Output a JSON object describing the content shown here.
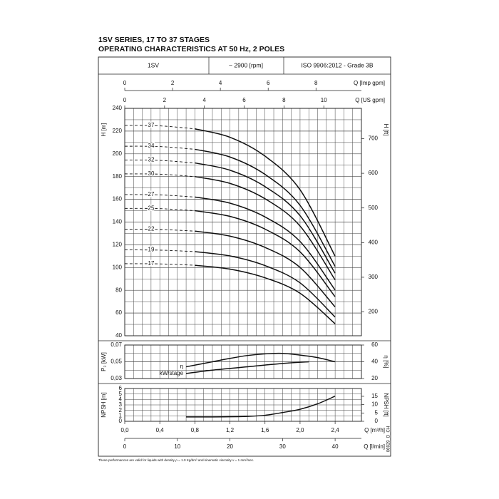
{
  "header": {
    "title": "1SV SERIES, 17 TO 37 STAGES",
    "subtitle": "OPERATING CHARACTERISTICS AT 50 Hz, 2 POLES"
  },
  "info": {
    "model": "1SV",
    "speed": "~ 2900 [rpm]",
    "standard": "ISO 9906:2012 - Grade 3B"
  },
  "chart_data": [
    {
      "type": "line",
      "y_label": "H [m]",
      "y2_label": "H [ft]",
      "color": "#111111",
      "xlim": [
        0,
        2.7
      ],
      "xgrid_step": 0.1,
      "ylim": [
        40,
        240
      ],
      "yticks": [
        40,
        60,
        80,
        100,
        120,
        140,
        160,
        180,
        200,
        220,
        240
      ],
      "yminor_step": 10,
      "y2lim": [
        131.2,
        787.4
      ],
      "y2ticks": [
        200,
        300,
        400,
        500,
        600,
        700
      ],
      "top_axes": [
        {
          "label": "Q [Imp gpm]",
          "lim": [
            0,
            9.9
          ],
          "ticks": [
            0,
            2,
            4,
            6,
            8
          ]
        },
        {
          "label": "Q [US gpm]",
          "lim": [
            0,
            11.89
          ],
          "ticks": [
            0,
            2,
            4,
            6,
            8,
            10
          ]
        }
      ],
      "dashed_until": 0.8,
      "x": [
        0,
        0.4,
        0.8,
        1.2,
        1.6,
        2.0,
        2.4
      ],
      "series": [
        {
          "name": "37",
          "values": [
            225.0,
            224.6,
            222.0,
            214.6,
            198.0,
            168.4,
            109.9
          ]
        },
        {
          "name": "34",
          "values": [
            206.7,
            206.4,
            204.0,
            197.2,
            181.9,
            154.7,
            101.0
          ]
        },
        {
          "name": "32",
          "values": [
            194.6,
            194.2,
            192.0,
            185.6,
            171.2,
            145.6,
            95.0
          ]
        },
        {
          "name": "30",
          "values": [
            182.4,
            182.1,
            180.0,
            174.0,
            160.5,
            136.5,
            89.1
          ]
        },
        {
          "name": "27",
          "values": [
            164.2,
            163.9,
            162.0,
            156.6,
            144.5,
            122.9,
            80.2
          ]
        },
        {
          "name": "25",
          "values": [
            152.0,
            151.8,
            150.0,
            145.0,
            133.8,
            113.8,
            74.3
          ]
        },
        {
          "name": "22",
          "values": [
            133.8,
            133.5,
            132.0,
            127.6,
            117.7,
            100.1,
            65.3
          ]
        },
        {
          "name": "19",
          "values": [
            115.5,
            115.3,
            114.0,
            110.2,
            101.7,
            86.5,
            56.4
          ]
        },
        {
          "name": "17",
          "values": [
            103.4,
            103.2,
            102.0,
            98.6,
            91.0,
            77.4,
            50.5
          ]
        }
      ]
    },
    {
      "type": "line",
      "y_label": "P₂ [kW]",
      "y2_label": "η [%]",
      "color": "#111111",
      "xlim": [
        0,
        2.7
      ],
      "xgrid_step": 0.1,
      "ylim": [
        0.03,
        0.07
      ],
      "yticks": [
        {
          "value": 0.03,
          "label": "0,03"
        },
        {
          "value": 0.05,
          "label": "0,05"
        },
        {
          "value": 0.07,
          "label": "0,07"
        }
      ],
      "yminor_step": 0.01,
      "y2lim": [
        20,
        60
      ],
      "y2ticks": [
        20,
        40,
        60
      ],
      "series": [
        {
          "name": "η",
          "axis": "y2",
          "x": [
            0.7,
            1.0,
            1.2,
            1.4,
            1.6,
            1.8,
            2.0,
            2.2,
            2.4
          ],
          "values": [
            34,
            40,
            44,
            47.5,
            49.5,
            50,
            48,
            45,
            40
          ]
        },
        {
          "name": "kW/stage",
          "x": [
            0.7,
            1.0,
            1.4,
            1.8,
            2.1
          ],
          "values": [
            0.036,
            0.04,
            0.044,
            0.048,
            0.05
          ]
        }
      ]
    },
    {
      "type": "line",
      "y_label": "NPSH [m]",
      "y2_label": "NPSH [ft]",
      "x_label": "Q [m³/h]",
      "color": "#111111",
      "xlim": [
        0,
        2.7
      ],
      "xgrid_step": 0.1,
      "xticks": [
        {
          "value": 0,
          "label": "0,0"
        },
        {
          "value": 0.4,
          "label": "0,4"
        },
        {
          "value": 0.8,
          "label": "0,8"
        },
        {
          "value": 1.2,
          "label": "1,2"
        },
        {
          "value": 1.6,
          "label": "1,6"
        },
        {
          "value": 2.0,
          "label": "2,0"
        },
        {
          "value": 2.4,
          "label": "2,4"
        }
      ],
      "ylim": [
        0,
        6
      ],
      "yticks": [
        0,
        1,
        2,
        3,
        4,
        5,
        6
      ],
      "y2lim": [
        0,
        19.69
      ],
      "y2ticks": [
        0,
        5,
        10,
        15
      ],
      "bottom_axes": [
        {
          "label": "Q [l/min]",
          "lim": [
            0,
            45
          ],
          "ticks": [
            0,
            10,
            20,
            30,
            40
          ]
        }
      ],
      "x": [
        0.7,
        1.0,
        1.4,
        1.6,
        1.8,
        2.0,
        2.2,
        2.4
      ],
      "values": [
        0.8,
        0.8,
        0.9,
        1.1,
        1.6,
        2.2,
        3.2,
        4.6
      ]
    }
  ],
  "footnote": "These performances are valid for liquids with density ρ = 1.0 Kg/dm³ and kinematic viscosity ν = 1 mm²/sec.",
  "code": "06929_D_CH"
}
